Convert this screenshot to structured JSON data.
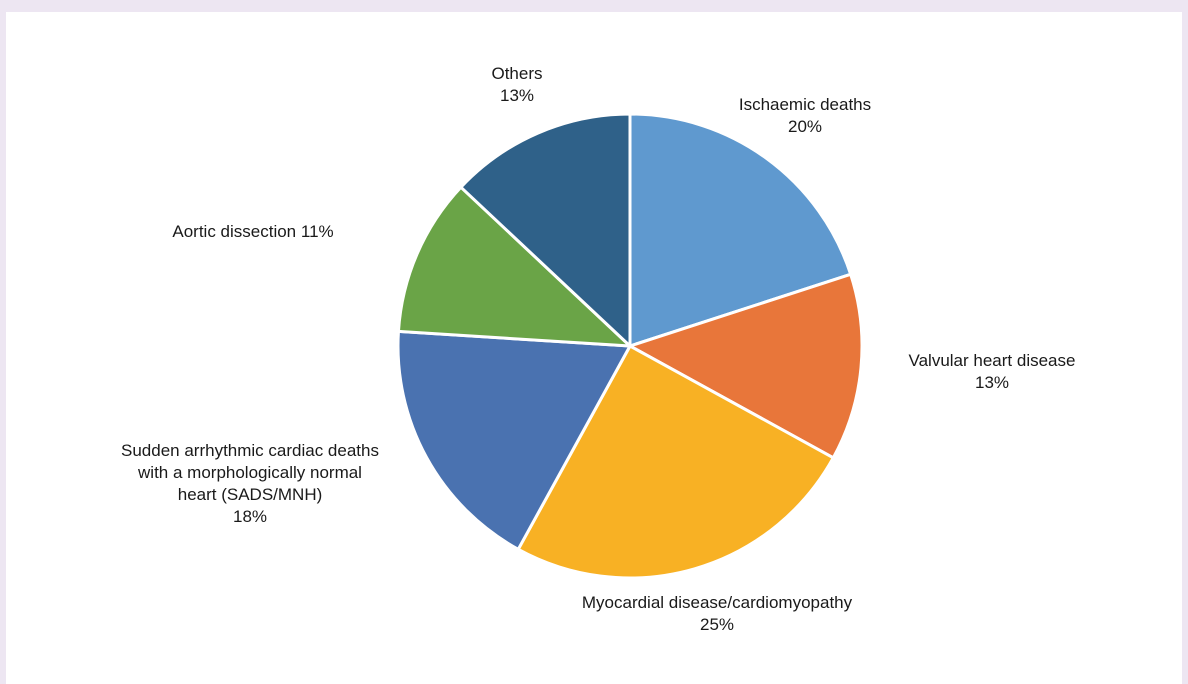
{
  "chart_data": {
    "type": "pie",
    "categories": [
      "Ischaemic deaths",
      "Valvular heart disease",
      "Myocardial disease/cardiomyopathy",
      "Sudden arrhythmic cardiac deaths with a morphologically normal heart (SADS/MNH)",
      "Aortic dissection",
      "Others"
    ],
    "values": [
      20,
      13,
      25,
      18,
      11,
      13
    ],
    "value_labels": [
      "20%",
      "13%",
      "25%",
      "18%",
      "11%",
      "13%"
    ],
    "colors": [
      "#5f99cf",
      "#e8763a",
      "#f8b124",
      "#4a72b0",
      "#6aa447",
      "#2f6189"
    ]
  }
}
